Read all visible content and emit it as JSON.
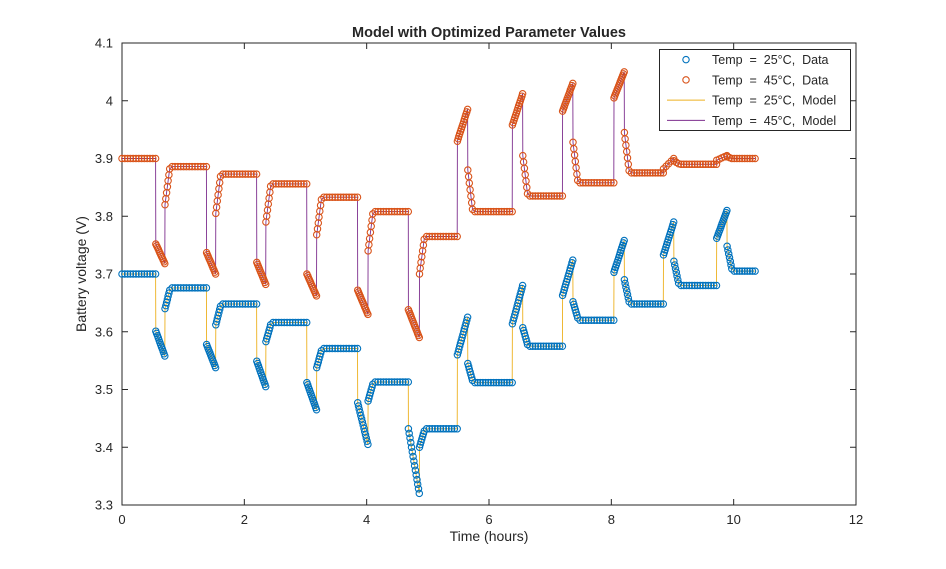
{
  "chart_data": {
    "type": "line",
    "title": "Model with Optimized Parameter Values",
    "xlabel": "Time (hours)",
    "ylabel": "Battery voltage (V)",
    "xlim": [
      0,
      12
    ],
    "ylim": [
      3.3,
      4.1
    ],
    "xticks": [
      0,
      2,
      4,
      6,
      8,
      10,
      12
    ],
    "xtick_labels": [
      "0",
      "2",
      "4",
      "6",
      "8",
      "10",
      "12"
    ],
    "yticks": [
      3.3,
      3.4,
      3.5,
      3.6,
      3.7,
      3.8,
      3.9,
      4.0,
      4.1
    ],
    "ytick_labels": [
      "3.3",
      "3.4",
      "3.5",
      "3.6",
      "3.7",
      "3.8",
      "3.9",
      "4",
      "4.1"
    ],
    "grid": false,
    "axis_color": "#262626",
    "legend": {
      "position": "top-right",
      "entries": [
        {
          "label": "Temp  =  25°C,  Data",
          "type": "marker",
          "color": "#0072BD"
        },
        {
          "label": "Temp  =  45°C,  Data",
          "type": "marker",
          "color": "#D95319"
        },
        {
          "label": "Temp  =  25°C,  Model",
          "type": "line",
          "color": "#EDB120"
        },
        {
          "label": "Temp  =  45°C,  Model",
          "type": "line",
          "color": "#7E2F8E"
        }
      ]
    },
    "series": [
      {
        "name": "Temp = 25°C, Data",
        "role": "data",
        "marker": "circle",
        "color": "#0072BD",
        "profile": "temp25"
      },
      {
        "name": "Temp = 45°C, Data",
        "role": "data",
        "marker": "circle",
        "color": "#D95319",
        "profile": "temp45"
      },
      {
        "name": "Temp = 25°C, Model",
        "role": "model",
        "color": "#EDB120",
        "profile": "temp25"
      },
      {
        "name": "Temp = 45°C, Model",
        "role": "model",
        "color": "#7E2F8E",
        "profile": "temp45"
      }
    ],
    "profiles": {
      "temp25": [
        [
          0,
          3.7
        ],
        [
          0.55,
          3.7
        ],
        [
          0.553,
          3.601
        ],
        [
          0.7,
          3.558
        ],
        [
          0.703,
          3.64
        ],
        [
          0.78,
          3.672
        ],
        [
          0.82,
          3.676
        ],
        [
          1.38,
          3.676
        ],
        [
          1.383,
          3.578
        ],
        [
          1.53,
          3.538
        ],
        [
          1.533,
          3.612
        ],
        [
          1.61,
          3.644
        ],
        [
          1.65,
          3.648
        ],
        [
          2.2,
          3.648
        ],
        [
          2.203,
          3.549
        ],
        [
          2.35,
          3.505
        ],
        [
          2.353,
          3.583
        ],
        [
          2.43,
          3.612
        ],
        [
          2.47,
          3.616
        ],
        [
          3.02,
          3.616
        ],
        [
          3.023,
          3.512
        ],
        [
          3.18,
          3.465
        ],
        [
          3.183,
          3.538
        ],
        [
          3.26,
          3.567
        ],
        [
          3.3,
          3.571
        ],
        [
          3.85,
          3.571
        ],
        [
          3.853,
          3.477
        ],
        [
          4.02,
          3.405
        ],
        [
          4.023,
          3.48
        ],
        [
          4.1,
          3.509
        ],
        [
          4.14,
          3.513
        ],
        [
          4.68,
          3.513
        ],
        [
          4.683,
          3.432
        ],
        [
          4.86,
          3.32
        ],
        [
          4.863,
          3.4
        ],
        [
          4.94,
          3.428
        ],
        [
          4.98,
          3.432
        ],
        [
          5.48,
          3.432
        ],
        [
          5.483,
          3.56
        ],
        [
          5.65,
          3.625
        ],
        [
          5.653,
          3.545
        ],
        [
          5.73,
          3.516
        ],
        [
          5.77,
          3.512
        ],
        [
          6.38,
          3.512
        ],
        [
          6.383,
          3.614
        ],
        [
          6.55,
          3.68
        ],
        [
          6.553,
          3.607
        ],
        [
          6.63,
          3.578
        ],
        [
          6.67,
          3.575
        ],
        [
          7.2,
          3.575
        ],
        [
          7.203,
          3.663
        ],
        [
          7.37,
          3.724
        ],
        [
          7.373,
          3.652
        ],
        [
          7.45,
          3.624
        ],
        [
          7.49,
          3.62
        ],
        [
          8.04,
          3.62
        ],
        [
          8.043,
          3.703
        ],
        [
          8.21,
          3.758
        ],
        [
          8.213,
          3.69
        ],
        [
          8.29,
          3.652
        ],
        [
          8.33,
          3.648
        ],
        [
          8.85,
          3.648
        ],
        [
          8.853,
          3.733
        ],
        [
          9.02,
          3.79
        ],
        [
          9.023,
          3.722
        ],
        [
          9.1,
          3.684
        ],
        [
          9.14,
          3.68
        ],
        [
          9.72,
          3.68
        ],
        [
          9.723,
          3.762
        ],
        [
          9.89,
          3.81
        ],
        [
          9.893,
          3.748
        ],
        [
          9.97,
          3.709
        ],
        [
          10.01,
          3.705
        ],
        [
          10.35,
          3.705
        ]
      ],
      "temp45": [
        [
          0,
          3.9
        ],
        [
          0.55,
          3.9
        ],
        [
          0.553,
          3.752
        ],
        [
          0.7,
          3.718
        ],
        [
          0.703,
          3.82
        ],
        [
          0.78,
          3.882
        ],
        [
          0.82,
          3.886
        ],
        [
          1.38,
          3.886
        ],
        [
          1.383,
          3.737
        ],
        [
          1.53,
          3.7
        ],
        [
          1.533,
          3.805
        ],
        [
          1.61,
          3.869
        ],
        [
          1.65,
          3.873
        ],
        [
          2.2,
          3.873
        ],
        [
          2.203,
          3.72
        ],
        [
          2.35,
          3.682
        ],
        [
          2.353,
          3.79
        ],
        [
          2.43,
          3.852
        ],
        [
          2.47,
          3.856
        ],
        [
          3.02,
          3.856
        ],
        [
          3.023,
          3.7
        ],
        [
          3.18,
          3.662
        ],
        [
          3.183,
          3.768
        ],
        [
          3.26,
          3.829
        ],
        [
          3.3,
          3.833
        ],
        [
          3.85,
          3.833
        ],
        [
          3.853,
          3.672
        ],
        [
          4.02,
          3.63
        ],
        [
          4.023,
          3.74
        ],
        [
          4.1,
          3.804
        ],
        [
          4.14,
          3.808
        ],
        [
          4.68,
          3.808
        ],
        [
          4.683,
          3.638
        ],
        [
          4.86,
          3.59
        ],
        [
          4.863,
          3.7
        ],
        [
          4.94,
          3.76
        ],
        [
          4.98,
          3.765
        ],
        [
          5.48,
          3.765
        ],
        [
          5.483,
          3.93
        ],
        [
          5.65,
          3.985
        ],
        [
          5.653,
          3.88
        ],
        [
          5.73,
          3.812
        ],
        [
          5.77,
          3.808
        ],
        [
          6.38,
          3.808
        ],
        [
          6.383,
          3.958
        ],
        [
          6.55,
          4.012
        ],
        [
          6.553,
          3.905
        ],
        [
          6.63,
          3.839
        ],
        [
          6.67,
          3.835
        ],
        [
          7.2,
          3.835
        ],
        [
          7.203,
          3.982
        ],
        [
          7.37,
          4.03
        ],
        [
          7.373,
          3.928
        ],
        [
          7.45,
          3.862
        ],
        [
          7.49,
          3.858
        ],
        [
          8.04,
          3.858
        ],
        [
          8.043,
          4.005
        ],
        [
          8.21,
          4.05
        ],
        [
          8.213,
          3.945
        ],
        [
          8.29,
          3.879
        ],
        [
          8.33,
          3.875
        ],
        [
          8.85,
          3.875
        ],
        [
          8.853,
          3.882
        ],
        [
          9.02,
          3.9
        ],
        [
          9.023,
          3.896
        ],
        [
          9.1,
          3.891
        ],
        [
          9.14,
          3.89
        ],
        [
          9.72,
          3.89
        ],
        [
          9.723,
          3.897
        ],
        [
          9.89,
          3.905
        ],
        [
          9.893,
          3.903
        ],
        [
          9.97,
          3.9
        ],
        [
          10.01,
          3.9
        ],
        [
          10.35,
          3.9
        ]
      ]
    }
  }
}
